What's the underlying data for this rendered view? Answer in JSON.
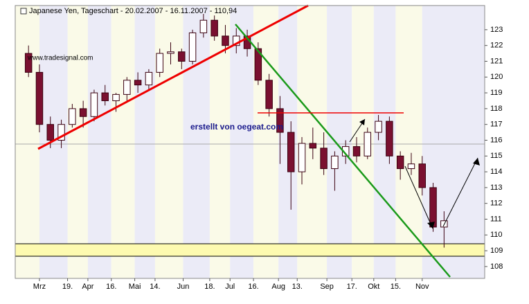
{
  "chart_data": {
    "type": "candlestick",
    "title": "Japanese Yen, Tageschart - 20.02.2007 - 16.11.2007 - 110,94",
    "source": "www.tradesignal.com",
    "annotation": "erstellt von oegeat.com",
    "x": [
      -7,
      0,
      7,
      14,
      21,
      28,
      35,
      42,
      49,
      56,
      63,
      70,
      77,
      84,
      91,
      98,
      105,
      112,
      119,
      126,
      133,
      140,
      147,
      154,
      161,
      168,
      175,
      182,
      189,
      196,
      203,
      210,
      217,
      224,
      231,
      238,
      245,
      252,
      259
    ],
    "open": [
      121.5,
      120.3,
      117.0,
      116.0,
      117.0,
      118.0,
      117.5,
      119.0,
      118.5,
      118.9,
      119.8,
      119.5,
      120.3,
      121.5,
      121.6,
      121.0,
      122.8,
      123.6,
      122.6,
      122.0,
      122.6,
      121.8,
      119.8,
      118.0,
      116.5,
      114.0,
      115.8,
      115.5,
      114.2,
      115.0,
      115.6,
      115.0,
      116.5,
      117.2,
      115.0,
      114.2,
      114.5,
      113.0,
      110.5
    ],
    "high": [
      122.0,
      120.8,
      117.5,
      117.3,
      118.3,
      118.5,
      119.2,
      119.5,
      119.0,
      120.0,
      120.3,
      120.5,
      121.8,
      122.2,
      121.8,
      123.0,
      124.0,
      123.9,
      123.3,
      123.1,
      123.0,
      122.2,
      120.2,
      118.8,
      117.2,
      116.2,
      116.8,
      116.5,
      115.3,
      116.0,
      116.2,
      116.8,
      117.6,
      117.5,
      115.3,
      115.2,
      115.0,
      113.3,
      111.5
    ],
    "low": [
      120.0,
      116.5,
      115.5,
      115.5,
      116.8,
      116.8,
      117.2,
      118.2,
      117.8,
      118.5,
      119.0,
      119.2,
      120.0,
      120.8,
      120.5,
      120.8,
      122.5,
      122.3,
      121.5,
      121.5,
      121.3,
      119.5,
      117.5,
      114.5,
      111.6,
      113.2,
      114.8,
      113.8,
      112.8,
      114.5,
      114.6,
      114.8,
      116.0,
      114.5,
      113.5,
      113.8,
      112.5,
      110.2,
      109.2
    ],
    "close": [
      120.3,
      117.0,
      116.0,
      117.0,
      118.0,
      117.5,
      119.0,
      118.5,
      118.9,
      119.8,
      119.5,
      120.3,
      121.5,
      121.6,
      121.0,
      122.8,
      123.6,
      122.6,
      122.0,
      122.6,
      121.8,
      119.8,
      118.0,
      116.5,
      114.0,
      115.8,
      115.5,
      114.2,
      115.0,
      115.6,
      115.0,
      116.5,
      117.2,
      115.0,
      114.2,
      114.5,
      113.0,
      110.5,
      110.9
    ],
    "up_color": "#ffffff",
    "down_color": "#7a1030",
    "xlim": [
      -15.5,
      285
    ],
    "xticks": [
      {
        "value": 0,
        "label": "Mrz"
      },
      {
        "value": 18,
        "label": "19."
      },
      {
        "value": 31,
        "label": "Apr"
      },
      {
        "value": 46,
        "label": "16."
      },
      {
        "value": 61,
        "label": "Mai"
      },
      {
        "value": 74,
        "label": "14."
      },
      {
        "value": 92,
        "label": "Jun"
      },
      {
        "value": 109,
        "label": "18."
      },
      {
        "value": 122,
        "label": "Jul"
      },
      {
        "value": 137,
        "label": "16."
      },
      {
        "value": 153,
        "label": "Aug"
      },
      {
        "value": 165,
        "label": "13."
      },
      {
        "value": 184,
        "label": "Sep"
      },
      {
        "value": 200,
        "label": "17."
      },
      {
        "value": 214,
        "label": "Okt"
      },
      {
        "value": 228,
        "label": "15."
      },
      {
        "value": 245,
        "label": "Nov"
      }
    ],
    "ylim": [
      107.25,
      124.53
    ],
    "yticks": [
      108,
      109,
      110,
      111,
      112,
      113,
      114,
      115,
      116,
      117,
      118,
      119,
      120,
      121,
      122,
      123
    ]
  }
}
